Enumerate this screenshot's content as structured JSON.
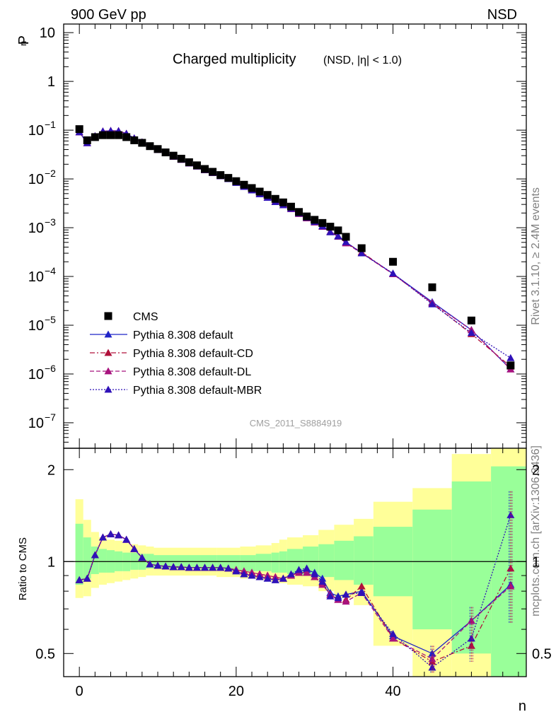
{
  "header": {
    "left": "900 GeV pp",
    "right": "NSD"
  },
  "side_text": {
    "events": "Rivet 3.1.10, ≥ 2.4M events",
    "source": "mcplots.cern.ch [arXiv:1306.3436]"
  },
  "chart_data": [
    {
      "type": "scatter",
      "title": "Charged multiplicity",
      "subtitle": "(NSD, |η| < 1.0)",
      "ylabel": "P",
      "ylabel_sub": "n",
      "yscale": "log",
      "ylim": [
        3e-08,
        15
      ],
      "xlim": [
        -2,
        57
      ],
      "y_ticks": [
        {
          "v": 10,
          "label": "10"
        },
        {
          "v": 1,
          "label": "1"
        },
        {
          "v": 0.1,
          "label": "10",
          "exp": "−1"
        },
        {
          "v": 0.01,
          "label": "10",
          "exp": "−2"
        },
        {
          "v": 0.001,
          "label": "10",
          "exp": "−3"
        },
        {
          "v": 0.0001,
          "label": "10",
          "exp": "−4"
        },
        {
          "v": 1e-05,
          "label": "10",
          "exp": "−5"
        },
        {
          "v": 1e-06,
          "label": "10",
          "exp": "−6"
        },
        {
          "v": 1e-07,
          "label": "10",
          "exp": "−7"
        }
      ],
      "watermark": "CMS_2011_S8884919",
      "legend_position": "bottom-left",
      "data": {
        "name": "CMS",
        "x": [
          0,
          1,
          2,
          3,
          4,
          5,
          6,
          7,
          8,
          9,
          10,
          11,
          12,
          13,
          14,
          15,
          16,
          17,
          18,
          19,
          20,
          21,
          22,
          23,
          24,
          25,
          26,
          27,
          28,
          29,
          30,
          31,
          32,
          33,
          34,
          36,
          40,
          45,
          50,
          55
        ],
        "y": [
          0.105,
          0.062,
          0.072,
          0.079,
          0.079,
          0.079,
          0.072,
          0.062,
          0.055,
          0.047,
          0.041,
          0.035,
          0.03,
          0.026,
          0.022,
          0.019,
          0.016,
          0.014,
          0.012,
          0.0105,
          0.009,
          0.0076,
          0.0065,
          0.0055,
          0.0047,
          0.0039,
          0.0033,
          0.0027,
          0.0021,
          0.0017,
          0.00145,
          0.00125,
          0.00105,
          0.00088,
          0.00065,
          0.00038,
          0.0002,
          6e-05,
          1.25e-05,
          1.5e-06
        ]
      },
      "series": [
        {
          "name": "Pythia 8.308 default",
          "color": "#1f24c8",
          "dash": "solid",
          "ratio": [
            0.87,
            0.88,
            1.05,
            1.2,
            1.23,
            1.22,
            1.18,
            1.1,
            1.03,
            0.98,
            0.97,
            0.965,
            0.96,
            0.96,
            0.955,
            0.955,
            0.955,
            0.955,
            0.955,
            0.95,
            0.93,
            0.91,
            0.9,
            0.89,
            0.88,
            0.87,
            0.88,
            0.9,
            0.93,
            0.94,
            0.92,
            0.88,
            0.79,
            0.77,
            0.78,
            0.8,
            0.57,
            0.5,
            0.64,
            0.84
          ]
        },
        {
          "name": "Pythia 8.308 default-CD",
          "color": "#b0103a",
          "dash": "7,3,2,3",
          "ratio": [
            0.87,
            0.88,
            1.05,
            1.2,
            1.23,
            1.22,
            1.18,
            1.1,
            1.03,
            0.98,
            0.97,
            0.965,
            0.96,
            0.96,
            0.955,
            0.955,
            0.955,
            0.955,
            0.955,
            0.95,
            0.94,
            0.93,
            0.92,
            0.91,
            0.9,
            0.89,
            0.88,
            0.9,
            0.92,
            0.92,
            0.89,
            0.85,
            0.78,
            0.75,
            0.75,
            0.83,
            0.56,
            0.47,
            0.53,
            0.95
          ]
        },
        {
          "name": "Pythia 8.308 default-DL",
          "color": "#a8137e",
          "dash": "6,3",
          "ratio": [
            0.87,
            0.88,
            1.05,
            1.2,
            1.23,
            1.22,
            1.18,
            1.1,
            1.03,
            0.98,
            0.97,
            0.965,
            0.96,
            0.96,
            0.955,
            0.955,
            0.955,
            0.955,
            0.955,
            0.95,
            0.94,
            0.93,
            0.92,
            0.91,
            0.9,
            0.89,
            0.88,
            0.9,
            0.92,
            0.92,
            0.89,
            0.84,
            0.78,
            0.75,
            0.74,
            0.79,
            0.56,
            0.48,
            0.64,
            0.83
          ]
        },
        {
          "name": "Pythia 8.308 default-MBR",
          "color": "#2f11b8",
          "dash": "2,2",
          "ratio": [
            0.87,
            0.88,
            1.05,
            1.2,
            1.23,
            1.22,
            1.18,
            1.1,
            1.03,
            0.98,
            0.97,
            0.965,
            0.96,
            0.96,
            0.955,
            0.955,
            0.955,
            0.955,
            0.955,
            0.95,
            0.93,
            0.91,
            0.9,
            0.89,
            0.88,
            0.87,
            0.88,
            0.91,
            0.94,
            0.95,
            0.91,
            0.86,
            0.77,
            0.76,
            0.78,
            0.79,
            0.58,
            0.45,
            0.56,
            1.42
          ]
        }
      ],
      "error_bars": [
        {
          "x": 45,
          "low": 0.43,
          "high": 0.53
        },
        {
          "x": 50,
          "low": 0.47,
          "high": 0.71
        },
        {
          "x": 55,
          "low": 0.63,
          "high": 1.7
        }
      ]
    },
    {
      "type": "scatter",
      "ylabel": "Ratio to CMS",
      "xlabel": "n",
      "yscale": "log",
      "ylim": [
        0.42,
        2.35
      ],
      "xlim": [
        -2,
        57
      ],
      "x_ticks": [
        0,
        20,
        40
      ],
      "y_ticks": [
        {
          "v": 0.5,
          "label": "0.5"
        },
        {
          "v": 1,
          "label": "1"
        },
        {
          "v": 2,
          "label": "2"
        }
      ],
      "bands": [
        {
          "x0": -0.5,
          "x1": 0.5,
          "g_lo": 0.84,
          "g_hi": 1.33,
          "y_lo": 0.76,
          "y_hi": 1.6
        },
        {
          "x0": 0.5,
          "x1": 1.5,
          "g_lo": 0.88,
          "g_hi": 1.2,
          "y_lo": 0.77,
          "y_hi": 1.37
        },
        {
          "x0": 1.5,
          "x1": 2.5,
          "g_lo": 0.91,
          "g_hi": 1.12,
          "y_lo": 0.82,
          "y_hi": 1.25
        },
        {
          "x0": 2.5,
          "x1": 3.5,
          "g_lo": 0.92,
          "g_hi": 1.1,
          "y_lo": 0.84,
          "y_hi": 1.2
        },
        {
          "x0": 3.5,
          "x1": 4.5,
          "g_lo": 0.92,
          "g_hi": 1.09,
          "y_lo": 0.85,
          "y_hi": 1.18
        },
        {
          "x0": 4.5,
          "x1": 5.5,
          "g_lo": 0.93,
          "g_hi": 1.08,
          "y_lo": 0.86,
          "y_hi": 1.17
        },
        {
          "x0": 5.5,
          "x1": 6.5,
          "g_lo": 0.93,
          "g_hi": 1.07,
          "y_lo": 0.87,
          "y_hi": 1.15
        },
        {
          "x0": 6.5,
          "x1": 7.5,
          "g_lo": 0.94,
          "g_hi": 1.07,
          "y_lo": 0.88,
          "y_hi": 1.14
        },
        {
          "x0": 7.5,
          "x1": 8.5,
          "g_lo": 0.94,
          "g_hi": 1.06,
          "y_lo": 0.89,
          "y_hi": 1.13
        },
        {
          "x0": 8.5,
          "x1": 9.5,
          "g_lo": 0.95,
          "g_hi": 1.06,
          "y_lo": 0.9,
          "y_hi": 1.12
        },
        {
          "x0": 9.5,
          "x1": 15.5,
          "g_lo": 0.95,
          "g_hi": 1.05,
          "y_lo": 0.9,
          "y_hi": 1.11
        },
        {
          "x0": 15.5,
          "x1": 17.5,
          "g_lo": 0.94,
          "g_hi": 1.05,
          "y_lo": 0.9,
          "y_hi": 1.11
        },
        {
          "x0": 17.5,
          "x1": 20.5,
          "g_lo": 0.94,
          "g_hi": 1.05,
          "y_lo": 0.89,
          "y_hi": 1.11
        },
        {
          "x0": 20.5,
          "x1": 22.5,
          "g_lo": 0.93,
          "g_hi": 1.05,
          "y_lo": 0.88,
          "y_hi": 1.12
        },
        {
          "x0": 22.5,
          "x1": 24.5,
          "g_lo": 0.93,
          "g_hi": 1.06,
          "y_lo": 0.87,
          "y_hi": 1.13
        },
        {
          "x0": 24.5,
          "x1": 25.5,
          "g_lo": 0.92,
          "g_hi": 1.07,
          "y_lo": 0.86,
          "y_hi": 1.15
        },
        {
          "x0": 25.5,
          "x1": 26.5,
          "g_lo": 0.92,
          "g_hi": 1.08,
          "y_lo": 0.85,
          "y_hi": 1.18
        },
        {
          "x0": 26.5,
          "x1": 28.5,
          "g_lo": 0.91,
          "g_hi": 1.1,
          "y_lo": 0.84,
          "y_hi": 1.2
        },
        {
          "x0": 28.5,
          "x1": 30.5,
          "g_lo": 0.9,
          "g_hi": 1.12,
          "y_lo": 0.83,
          "y_hi": 1.22
        },
        {
          "x0": 30.5,
          "x1": 32.5,
          "g_lo": 0.89,
          "g_hi": 1.14,
          "y_lo": 0.8,
          "y_hi": 1.27
        },
        {
          "x0": 32.5,
          "x1": 35.0,
          "g_lo": 0.87,
          "g_hi": 1.17,
          "y_lo": 0.76,
          "y_hi": 1.32
        },
        {
          "x0": 35.0,
          "x1": 37.5,
          "g_lo": 0.84,
          "g_hi": 1.21,
          "y_lo": 0.72,
          "y_hi": 1.38
        },
        {
          "x0": 37.5,
          "x1": 42.5,
          "g_lo": 0.77,
          "g_hi": 1.3,
          "y_lo": 0.53,
          "y_hi": 1.57
        },
        {
          "x0": 42.5,
          "x1": 47.5,
          "g_lo": 0.6,
          "g_hi": 1.48,
          "y_lo": 0.3,
          "y_hi": 1.74
        },
        {
          "x0": 47.5,
          "x1": 52.5,
          "g_lo": 0.5,
          "g_hi": 1.83,
          "y_lo": 0.3,
          "y_hi": 2.25
        },
        {
          "x0": 52.5,
          "x1": 57.0,
          "g_lo": 0.3,
          "g_hi": 2.05,
          "y_lo": 0.3,
          "y_hi": 3.0
        }
      ]
    }
  ]
}
